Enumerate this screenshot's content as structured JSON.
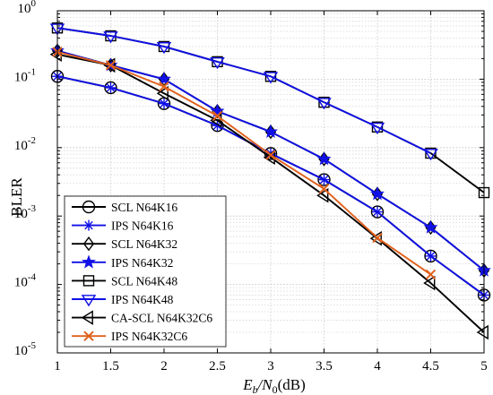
{
  "chart_data": {
    "type": "line",
    "xlabel_main": "E",
    "xlabel_sub1": "b",
    "xlabel_slash": "/N",
    "xlabel_sub2": "0",
    "xlabel_unit": "(dB)",
    "ylabel": "BLER",
    "xlim": [
      1,
      5
    ],
    "ylim": [
      1e-05,
      1
    ],
    "yscale": "log",
    "grid": true,
    "legend_position": "bottom-left",
    "x_ticks": [
      {
        "v": 1,
        "label": "1"
      },
      {
        "v": 1.5,
        "label": "1.5"
      },
      {
        "v": 2,
        "label": "2"
      },
      {
        "v": 2.5,
        "label": "2.5"
      },
      {
        "v": 3,
        "label": "3"
      },
      {
        "v": 3.5,
        "label": "3.5"
      },
      {
        "v": 4,
        "label": "4"
      },
      {
        "v": 4.5,
        "label": "4.5"
      },
      {
        "v": 5,
        "label": "5"
      }
    ],
    "y_ticks": [
      {
        "exp": 0,
        "base": "10",
        "sup": "0"
      },
      {
        "exp": -1,
        "base": "10",
        "sup": "-1"
      },
      {
        "exp": -2,
        "base": "10",
        "sup": "-2"
      },
      {
        "exp": -3,
        "base": "10",
        "sup": "-3"
      },
      {
        "exp": -4,
        "base": "10",
        "sup": "-4"
      },
      {
        "exp": -5,
        "base": "10",
        "sup": "-5"
      }
    ],
    "series": [
      {
        "name": "SCL N64K16",
        "color": "#000000",
        "marker": "circle",
        "size": 6.5,
        "x": [
          1,
          1.5,
          2,
          2.5,
          3,
          3.5,
          4,
          4.5,
          5
        ],
        "y": [
          0.11,
          0.075,
          0.044,
          0.021,
          0.0082,
          0.0034,
          0.00115,
          0.00026,
          7e-05
        ]
      },
      {
        "name": "IPS N64K16",
        "color": "#1010e6",
        "marker": "asterisk",
        "size": 6,
        "x": [
          1,
          1.5,
          2,
          2.5,
          3,
          3.5,
          4,
          4.5,
          5
        ],
        "y": [
          0.11,
          0.075,
          0.044,
          0.021,
          0.0082,
          0.0034,
          0.00115,
          0.00026,
          7e-05
        ]
      },
      {
        "name": "SCL N64K32",
        "color": "#000000",
        "marker": "diamond",
        "size": 7,
        "x": [
          1,
          1.5,
          2,
          2.5,
          3,
          3.5,
          4,
          4.5,
          5
        ],
        "y": [
          0.26,
          0.16,
          0.1,
          0.034,
          0.017,
          0.0068,
          0.0021,
          0.00068,
          0.00016
        ]
      },
      {
        "name": "IPS N64K32",
        "color": "#1010e6",
        "marker": "star",
        "size": 7.5,
        "x": [
          1,
          1.5,
          2,
          2.5,
          3,
          3.5,
          4,
          4.5,
          5
        ],
        "y": [
          0.26,
          0.16,
          0.1,
          0.034,
          0.017,
          0.0068,
          0.0021,
          0.00068,
          0.00016
        ]
      },
      {
        "name": "SCL N64K48",
        "color": "#000000",
        "marker": "square",
        "size": 5.5,
        "x": [
          1,
          1.5,
          2,
          2.5,
          3,
          3.5,
          4,
          4.5,
          5
        ],
        "y": [
          0.56,
          0.43,
          0.3,
          0.18,
          0.11,
          0.046,
          0.02,
          0.0083,
          0.0022
        ]
      },
      {
        "name": "IPS N64K48",
        "color": "#1010e6",
        "marker": "triangle-down",
        "size": 7,
        "x": [
          1,
          1.5,
          2,
          2.5,
          3,
          3.5,
          4,
          4.5
        ],
        "y": [
          0.56,
          0.43,
          0.3,
          0.18,
          0.11,
          0.046,
          0.02,
          0.0083
        ]
      },
      {
        "name": "CA-SCL N64K32C6",
        "color": "#000000",
        "marker": "triangle-left",
        "size": 7,
        "x": [
          1,
          1.5,
          2,
          2.5,
          3,
          3.5,
          4,
          4.5,
          5
        ],
        "y": [
          0.23,
          0.16,
          0.062,
          0.025,
          0.0072,
          0.002,
          0.00047,
          0.000105,
          2e-05
        ]
      },
      {
        "name": "IPS N64K32C6",
        "color": "#e0611c",
        "marker": "x",
        "size": 5,
        "x": [
          1,
          1.5,
          2,
          2.5,
          3,
          3.5,
          4,
          4.5
        ],
        "y": [
          0.25,
          0.16,
          0.078,
          0.029,
          0.0078,
          0.0025,
          0.00048,
          0.00014
        ]
      }
    ]
  }
}
